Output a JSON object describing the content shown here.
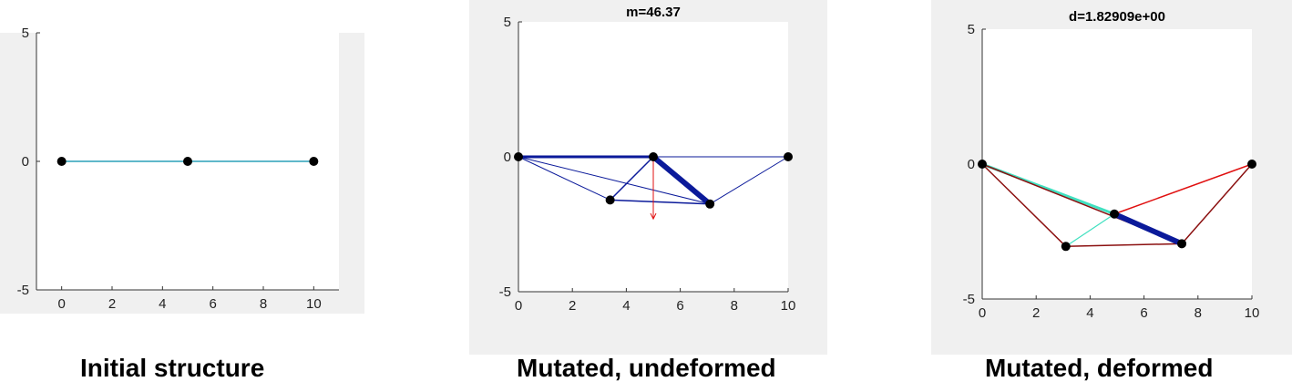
{
  "captions": {
    "initial": "Initial structure",
    "undeformed": "Mutated, undeformed",
    "deformed": "Mutated, deformed"
  },
  "panels": [
    {
      "id": "initial",
      "title": "",
      "xlim": [
        -1,
        11
      ],
      "ylim": [
        -5,
        5
      ],
      "xticks": [
        "0",
        "2",
        "4",
        "6",
        "8",
        "10"
      ],
      "yticks": [
        "5",
        "0",
        "-5"
      ],
      "nodes": [
        [
          0,
          0
        ],
        [
          5,
          0
        ],
        [
          10,
          0
        ]
      ],
      "members": [
        {
          "from": [
            0,
            0
          ],
          "to": [
            5,
            0
          ],
          "color": "#2aa0b8",
          "weight": 1.5
        },
        {
          "from": [
            5,
            0
          ],
          "to": [
            10,
            0
          ],
          "color": "#2aa0b8",
          "weight": 1.5
        }
      ]
    },
    {
      "id": "undeformed",
      "title": "m=46.37",
      "xlim": [
        0,
        10
      ],
      "ylim": [
        -5,
        5
      ],
      "xticks": [
        "0",
        "2",
        "4",
        "6",
        "8",
        "10"
      ],
      "yticks": [
        "5",
        "0",
        "-5"
      ],
      "nodes": [
        [
          0,
          0
        ],
        [
          5,
          0
        ],
        [
          10,
          0
        ],
        [
          3.4,
          -1.6
        ],
        [
          7.1,
          -1.75
        ]
      ],
      "members": [
        {
          "from": [
            0,
            0
          ],
          "to": [
            5,
            0
          ],
          "color": "#0b1a9a",
          "weight": 3
        },
        {
          "from": [
            5,
            0
          ],
          "to": [
            10,
            0
          ],
          "color": "#0b1a9a",
          "weight": 1
        },
        {
          "from": [
            0,
            0
          ],
          "to": [
            3.4,
            -1.6
          ],
          "color": "#0b1a9a",
          "weight": 1
        },
        {
          "from": [
            0,
            0
          ],
          "to": [
            7.1,
            -1.75
          ],
          "color": "#0b1a9a",
          "weight": 1
        },
        {
          "from": [
            0,
            0
          ],
          "to": [
            5,
            0
          ],
          "color": "#0b1a9a",
          "weight": 1
        },
        {
          "from": [
            3.4,
            -1.6
          ],
          "to": [
            5,
            0
          ],
          "color": "#0b1a9a",
          "weight": 1.5
        },
        {
          "from": [
            3.4,
            -1.6
          ],
          "to": [
            7.1,
            -1.75
          ],
          "color": "#0b1a9a",
          "weight": 1.5
        },
        {
          "from": [
            5,
            0
          ],
          "to": [
            7.1,
            -1.75
          ],
          "color": "#0b1a9a",
          "weight": 6
        },
        {
          "from": [
            7.1,
            -1.75
          ],
          "to": [
            10,
            0
          ],
          "color": "#0b1a9a",
          "weight": 1
        }
      ],
      "load": {
        "at": [
          5,
          0
        ],
        "to": [
          5,
          -2.3
        ],
        "color": "#e01010"
      }
    },
    {
      "id": "deformed",
      "title": "d=1.82909e+00",
      "xlim": [
        0,
        10
      ],
      "ylim": [
        -5,
        5
      ],
      "xticks": [
        "0",
        "2",
        "4",
        "6",
        "8",
        "10"
      ],
      "yticks": [
        "5",
        "0",
        "-5"
      ],
      "nodes": [
        [
          0,
          0
        ],
        [
          10,
          0
        ],
        [
          3.1,
          -3.05
        ],
        [
          7.4,
          -2.95
        ],
        [
          4.9,
          -1.85
        ]
      ],
      "members": [
        {
          "from": [
            0,
            0
          ],
          "to": [
            4.9,
            -1.85
          ],
          "color": "#40e0c0",
          "weight": 3
        },
        {
          "from": [
            0,
            0
          ],
          "to": [
            3.1,
            -3.05
          ],
          "color": "#8b1010",
          "weight": 1.5
        },
        {
          "from": [
            0,
            0
          ],
          "to": [
            7.4,
            -2.95
          ],
          "color": "#8b1010",
          "weight": 1.5
        },
        {
          "from": [
            3.1,
            -3.05
          ],
          "to": [
            7.4,
            -2.95
          ],
          "color": "#8b1010",
          "weight": 1.5
        },
        {
          "from": [
            7.4,
            -2.95
          ],
          "to": [
            10,
            0
          ],
          "color": "#8b1010",
          "weight": 1.5
        },
        {
          "from": [
            3.1,
            -3.05
          ],
          "to": [
            4.9,
            -1.85
          ],
          "color": "#40e0c0",
          "weight": 1.2
        },
        {
          "from": [
            4.9,
            -1.85
          ],
          "to": [
            10,
            0
          ],
          "color": "#e01010",
          "weight": 1.5
        },
        {
          "from": [
            4.9,
            -1.85
          ],
          "to": [
            7.4,
            -2.95
          ],
          "color": "#0b1a9a",
          "weight": 6
        }
      ]
    }
  ]
}
